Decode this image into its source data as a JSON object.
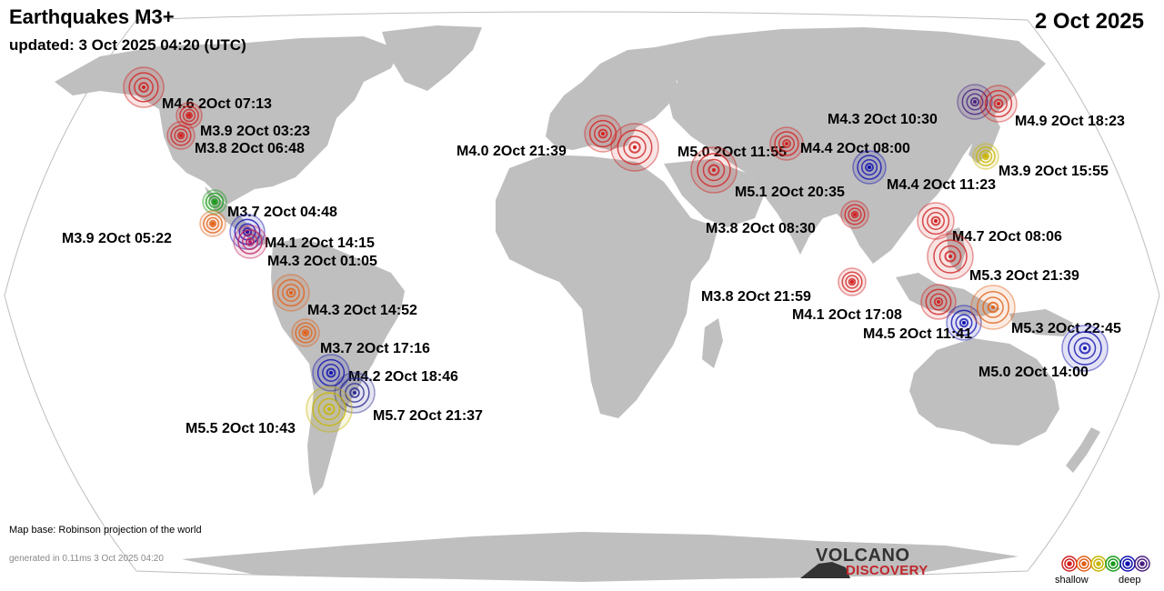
{
  "header": {
    "title": "Earthquakes M3+",
    "updated": "updated:  3 Oct 2025 04:20 (UTC)",
    "date": "2 Oct 2025"
  },
  "footer": {
    "map_base": "Map base: Robinson projection of the world",
    "generated": "generated in 0.11ms  3 Oct 2025 04:20"
  },
  "legend": {
    "shallow": "shallow",
    "deep": "deep",
    "depth_colors": [
      "#d02020",
      "#e06018",
      "#c8b400",
      "#1a9a1a",
      "#1010b0",
      "#4a2080"
    ]
  },
  "brand": {
    "line1": "VOLCANO",
    "line2": "DISCOVERY"
  },
  "quakes": [
    {
      "label": "M4.6  2Oct 07:13",
      "color": "#d02020"
    },
    {
      "label": "M3.9  2Oct 03:23",
      "color": "#d02020"
    },
    {
      "label": "M3.8  2Oct 06:48",
      "color": "#d02020"
    },
    {
      "label": "M3.7  2Oct 04:48",
      "color": "#1a9a1a"
    },
    {
      "label": "M3.9  2Oct 05:22",
      "color": "#e06018"
    },
    {
      "label": "M4.1  2Oct 14:15",
      "color": "#1010b0"
    },
    {
      "label": "M4.3  2Oct 01:05",
      "color": "#c02060"
    },
    {
      "label": "M4.3  2Oct 14:52",
      "color": "#e06018"
    },
    {
      "label": "M3.7  2Oct 17:16",
      "color": "#e06018"
    },
    {
      "label": "M4.2  2Oct 18:46",
      "color": "#1010b0"
    },
    {
      "label": "M5.7  2Oct 21:37",
      "color": "#2a2a90"
    },
    {
      "label": "M5.5  2Oct 10:43",
      "color": "#c8b400"
    },
    {
      "label": "M4.0  2Oct 21:39",
      "color": "#d02020"
    },
    {
      "label": "M5.0  2Oct 11:55",
      "color": "#d02020"
    },
    {
      "label": "M5.1  2Oct 20:35",
      "color": "#d02020"
    },
    {
      "label": "M4.4  2Oct 08:00",
      "color": "#d02020"
    },
    {
      "label": "M4.4  2Oct 11:23",
      "color": "#1010b0"
    },
    {
      "label": "M3.8  2Oct 08:30",
      "color": "#d02020"
    },
    {
      "label": "M4.3  2Oct 10:30",
      "color": "#4a2080"
    },
    {
      "label": "M4.9  2Oct 18:23",
      "color": "#d02020"
    },
    {
      "label": "M3.9  2Oct 15:55",
      "color": "#c8b400"
    },
    {
      "label": "M4.7  2Oct 08:06",
      "color": "#d02020"
    },
    {
      "label": "M5.3  2Oct 21:39",
      "color": "#d02020"
    },
    {
      "label": "M3.8  2Oct 21:59",
      "color": "#d02020"
    },
    {
      "label": "M4.1  2Oct 17:08",
      "color": "#d02020"
    },
    {
      "label": "M4.5  2Oct 11:41",
      "color": "#1010b0"
    },
    {
      "label": "M5.3  2Oct 22:45",
      "color": "#e06018"
    },
    {
      "label": "M5.0  2Oct 14:00",
      "color": "#1010b0"
    }
  ]
}
